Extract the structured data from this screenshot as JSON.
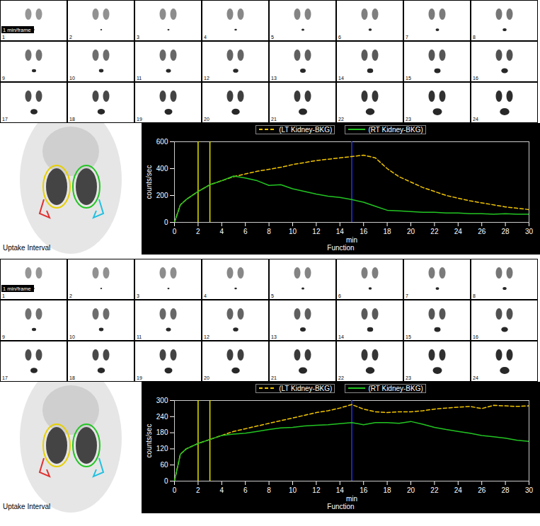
{
  "chart_data": [
    {
      "type": "line",
      "frame_note": "1 min/frame",
      "frames": [
        1,
        2,
        3,
        4,
        5,
        6,
        7,
        8,
        9,
        10,
        11,
        12,
        13,
        14,
        15,
        16,
        17,
        18,
        19,
        20,
        21,
        22,
        23,
        24
      ],
      "roi_label": "Uptake Interval",
      "x": [
        0,
        0.5,
        1,
        2,
        3,
        4,
        5,
        6,
        7,
        8,
        9,
        10,
        11,
        12,
        13,
        14,
        15,
        16,
        17,
        18,
        19,
        20,
        21,
        22,
        23,
        24,
        25,
        26,
        27,
        28,
        29,
        30
      ],
      "series": [
        {
          "name": "(LT Kidney-BKG)",
          "color": "#f2c500",
          "line_style": "dashed",
          "values": [
            0,
            130,
            170,
            230,
            280,
            310,
            340,
            360,
            380,
            395,
            410,
            430,
            445,
            460,
            470,
            480,
            490,
            500,
            480,
            400,
            340,
            300,
            260,
            230,
            200,
            180,
            160,
            145,
            130,
            115,
            105,
            95
          ]
        },
        {
          "name": "(RT Kidney-BKG)",
          "color": "#22c522",
          "line_style": "solid",
          "values": [
            0,
            130,
            170,
            230,
            280,
            310,
            345,
            330,
            310,
            275,
            280,
            250,
            230,
            210,
            195,
            185,
            170,
            150,
            120,
            90,
            85,
            80,
            75,
            75,
            70,
            70,
            65,
            65,
            60,
            65,
            60,
            60
          ]
        }
      ],
      "xlim": [
        0,
        30
      ],
      "xticks": [
        0,
        2,
        4,
        6,
        8,
        10,
        12,
        14,
        16,
        18,
        20,
        22,
        24,
        26,
        28,
        30
      ],
      "ylim": [
        0,
        600
      ],
      "yticks": [
        0,
        200,
        400,
        600
      ],
      "xlabel": "min",
      "x_sublabel": "Function",
      "ylabel": "counts/sec",
      "legend": "top",
      "vertical_lines": [
        {
          "x": 2,
          "color": "#e6e600"
        },
        {
          "x": 3,
          "color": "#e6e600"
        },
        {
          "x": 15,
          "color": "#2233ff"
        }
      ]
    },
    {
      "type": "line",
      "frame_note": "1 min/frame",
      "frames": [
        1,
        2,
        3,
        4,
        5,
        6,
        7,
        8,
        9,
        10,
        11,
        12,
        13,
        14,
        15,
        16,
        17,
        18,
        19,
        20,
        21,
        22,
        23,
        24
      ],
      "roi_label": "Uptake Interval",
      "x": [
        0,
        0.5,
        1,
        2,
        3,
        4,
        5,
        6,
        7,
        8,
        9,
        10,
        11,
        12,
        13,
        14,
        15,
        16,
        17,
        18,
        19,
        20,
        21,
        22,
        23,
        24,
        25,
        26,
        27,
        28,
        29,
        30
      ],
      "series": [
        {
          "name": "(LT Kidney-BKG)",
          "color": "#f2c500",
          "line_style": "dashed",
          "values": [
            0,
            100,
            120,
            140,
            155,
            170,
            185,
            195,
            205,
            215,
            225,
            235,
            245,
            255,
            262,
            272,
            285,
            268,
            258,
            255,
            258,
            258,
            262,
            268,
            272,
            275,
            278,
            270,
            282,
            280,
            278,
            280
          ]
        },
        {
          "name": "(RT Kidney-BKG)",
          "color": "#22c522",
          "line_style": "solid",
          "values": [
            0,
            100,
            120,
            140,
            155,
            170,
            175,
            178,
            185,
            192,
            198,
            200,
            205,
            208,
            210,
            214,
            218,
            210,
            218,
            218,
            215,
            222,
            212,
            200,
            192,
            185,
            178,
            170,
            165,
            160,
            152,
            148
          ]
        }
      ],
      "xlim": [
        0,
        30
      ],
      "xticks": [
        0,
        2,
        4,
        6,
        8,
        10,
        12,
        14,
        16,
        18,
        20,
        22,
        24,
        26,
        28,
        30
      ],
      "ylim": [
        0,
        300
      ],
      "yticks": [
        0,
        60,
        120,
        180,
        240,
        300
      ],
      "xlabel": "min",
      "x_sublabel": "Function",
      "ylabel": "counts/sec",
      "legend": "top",
      "vertical_lines": [
        {
          "x": 2,
          "color": "#e6e600"
        },
        {
          "x": 3,
          "color": "#e6e600"
        },
        {
          "x": 15,
          "color": "#2233ff"
        }
      ]
    }
  ]
}
